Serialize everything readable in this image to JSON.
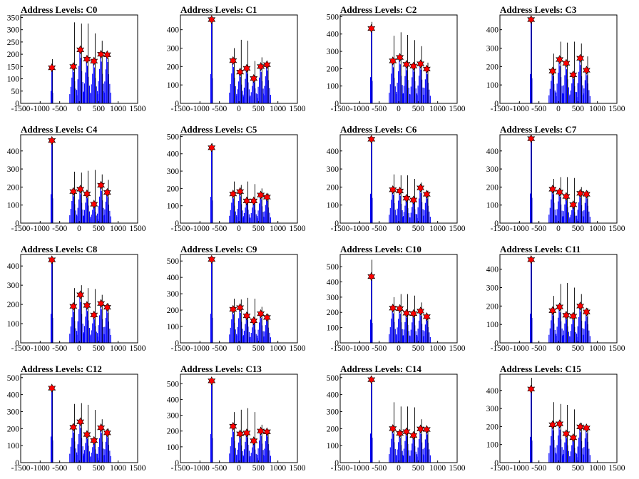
{
  "colors": {
    "hist": "#0000ff",
    "spike": "#000000",
    "marker": "#ff0000",
    "axis": "#000000"
  },
  "chart_data": [
    {
      "type": "bar",
      "title": "Address Levels: C0",
      "xlim": [
        -1500,
        1500
      ],
      "ylim": [
        0,
        360
      ],
      "xticks": [
        "-1500",
        "-1000",
        "-500",
        "0",
        "500",
        "1000",
        "1500"
      ],
      "yticks": [
        "0",
        "50",
        "100",
        "150",
        "200",
        "250",
        "300",
        "350"
      ],
      "levels": [
        {
          "x": -700,
          "value": 145,
          "peak": 180
        },
        {
          "x": -150,
          "value": 150,
          "peak": 330
        },
        {
          "x": 30,
          "value": 218,
          "peak": 325
        },
        {
          "x": 200,
          "value": 180,
          "peak": 325
        },
        {
          "x": 380,
          "value": 172,
          "peak": 285
        },
        {
          "x": 560,
          "value": 200,
          "peak": 255
        },
        {
          "x": 720,
          "value": 198,
          "peak": 185
        }
      ]
    },
    {
      "type": "bar",
      "title": "Address Levels: C1",
      "xlim": [
        -1500,
        1500
      ],
      "ylim": [
        0,
        480
      ],
      "xticks": [
        "-1500",
        "-1000",
        "-500",
        "0",
        "500",
        "1000",
        "1500"
      ],
      "yticks": [
        "0",
        "100",
        "200",
        "300",
        "400"
      ],
      "levels": [
        {
          "x": -700,
          "value": 455,
          "peak": 455
        },
        {
          "x": -150,
          "value": 232,
          "peak": 300
        },
        {
          "x": 30,
          "value": 170,
          "peak": 345
        },
        {
          "x": 200,
          "value": 190,
          "peak": 340
        },
        {
          "x": 380,
          "value": 135,
          "peak": 230
        },
        {
          "x": 560,
          "value": 200,
          "peak": 250
        },
        {
          "x": 720,
          "value": 210,
          "peak": 220
        }
      ]
    },
    {
      "type": "bar",
      "title": "Address Levels: C2",
      "xlim": [
        -1500,
        1500
      ],
      "ylim": [
        0,
        510
      ],
      "xticks": [
        "-1500",
        "-1000",
        "-500",
        "0",
        "500",
        "1000",
        "1500"
      ],
      "yticks": [
        "0",
        "100",
        "200",
        "300",
        "400",
        "500"
      ],
      "levels": [
        {
          "x": -700,
          "value": 432,
          "peak": 470
        },
        {
          "x": -150,
          "value": 245,
          "peak": 390
        },
        {
          "x": 30,
          "value": 265,
          "peak": 410
        },
        {
          "x": 200,
          "value": 225,
          "peak": 395
        },
        {
          "x": 380,
          "value": 215,
          "peak": 365
        },
        {
          "x": 560,
          "value": 228,
          "peak": 330
        },
        {
          "x": 720,
          "value": 198,
          "peak": 235
        }
      ]
    },
    {
      "type": "bar",
      "title": "Address Levels: C3",
      "xlim": [
        -1500,
        1500
      ],
      "ylim": [
        0,
        480
      ],
      "xticks": [
        "-1500",
        "-1000",
        "-500",
        "0",
        "500",
        "1000",
        "1500"
      ],
      "yticks": [
        "0",
        "100",
        "200",
        "300",
        "400"
      ],
      "levels": [
        {
          "x": -700,
          "value": 455,
          "peak": 455
        },
        {
          "x": -150,
          "value": 175,
          "peak": 270
        },
        {
          "x": 30,
          "value": 238,
          "peak": 335
        },
        {
          "x": 200,
          "value": 218,
          "peak": 330
        },
        {
          "x": 380,
          "value": 155,
          "peak": 335
        },
        {
          "x": 560,
          "value": 245,
          "peak": 325
        },
        {
          "x": 720,
          "value": 180,
          "peak": 255
        }
      ]
    },
    {
      "type": "bar",
      "title": "Address Levels: C4",
      "xlim": [
        -1500,
        1500
      ],
      "ylim": [
        0,
        490
      ],
      "xticks": [
        "-1500",
        "-1000",
        "-500",
        "0",
        "500",
        "1000",
        "1500"
      ],
      "yticks": [
        "0",
        "100",
        "200",
        "300",
        "400"
      ],
      "levels": [
        {
          "x": -700,
          "value": 458,
          "peak": 458
        },
        {
          "x": -150,
          "value": 175,
          "peak": 285
        },
        {
          "x": 30,
          "value": 188,
          "peak": 280
        },
        {
          "x": 200,
          "value": 162,
          "peak": 290
        },
        {
          "x": 380,
          "value": 105,
          "peak": 295
        },
        {
          "x": 560,
          "value": 210,
          "peak": 270
        },
        {
          "x": 720,
          "value": 170,
          "peak": 240
        }
      ]
    },
    {
      "type": "bar",
      "title": "Address Levels: C5",
      "xlim": [
        -1500,
        1500
      ],
      "ylim": [
        0,
        510
      ],
      "xticks": [
        "-1500",
        "-1000",
        "-500",
        "0",
        "500",
        "1000",
        "1500"
      ],
      "yticks": [
        "0",
        "100",
        "200",
        "300",
        "400",
        "500"
      ],
      "levels": [
        {
          "x": -700,
          "value": 435,
          "peak": 460
        },
        {
          "x": -150,
          "value": 168,
          "peak": 240
        },
        {
          "x": 30,
          "value": 182,
          "peak": 220
        },
        {
          "x": 200,
          "value": 128,
          "peak": 240
        },
        {
          "x": 380,
          "value": 128,
          "peak": 225
        },
        {
          "x": 560,
          "value": 162,
          "peak": 200
        },
        {
          "x": 720,
          "value": 150,
          "peak": 170
        }
      ]
    },
    {
      "type": "bar",
      "title": "Address Levels: C6",
      "xlim": [
        -1500,
        1500
      ],
      "ylim": [
        0,
        490
      ],
      "xticks": [
        "-1500",
        "-1000",
        "-500",
        "0",
        "500",
        "1000",
        "1500"
      ],
      "yticks": [
        "0",
        "100",
        "200",
        "300",
        "400"
      ],
      "levels": [
        {
          "x": -700,
          "value": 465,
          "peak": 465
        },
        {
          "x": -150,
          "value": 185,
          "peak": 270
        },
        {
          "x": 30,
          "value": 178,
          "peak": 265
        },
        {
          "x": 200,
          "value": 138,
          "peak": 265
        },
        {
          "x": 380,
          "value": 128,
          "peak": 245
        },
        {
          "x": 560,
          "value": 195,
          "peak": 225
        },
        {
          "x": 720,
          "value": 160,
          "peak": 180
        }
      ]
    },
    {
      "type": "bar",
      "title": "Address Levels: C7",
      "xlim": [
        -1500,
        1500
      ],
      "ylim": [
        0,
        490
      ],
      "xticks": [
        "-1500",
        "-1000",
        "-500",
        "0",
        "500",
        "1000",
        "1500"
      ],
      "yticks": [
        "0",
        "100",
        "200",
        "300",
        "400"
      ],
      "levels": [
        {
          "x": -700,
          "value": 468,
          "peak": 468
        },
        {
          "x": -150,
          "value": 188,
          "peak": 245
        },
        {
          "x": 30,
          "value": 172,
          "peak": 255
        },
        {
          "x": 200,
          "value": 148,
          "peak": 255
        },
        {
          "x": 380,
          "value": 102,
          "peak": 250
        },
        {
          "x": 560,
          "value": 165,
          "peak": 200
        },
        {
          "x": 720,
          "value": 160,
          "peak": 180
        }
      ]
    },
    {
      "type": "bar",
      "title": "Address Levels: C8",
      "xlim": [
        -1500,
        1500
      ],
      "ylim": [
        0,
        460
      ],
      "xticks": [
        "-1500",
        "-1000",
        "-500",
        "0",
        "500",
        "1000",
        "1500"
      ],
      "yticks": [
        "0",
        "100",
        "200",
        "300",
        "400"
      ],
      "levels": [
        {
          "x": -700,
          "value": 432,
          "peak": 432
        },
        {
          "x": -150,
          "value": 190,
          "peak": 285
        },
        {
          "x": 30,
          "value": 250,
          "peak": 300
        },
        {
          "x": 200,
          "value": 195,
          "peak": 285
        },
        {
          "x": 380,
          "value": 145,
          "peak": 280
        },
        {
          "x": 560,
          "value": 205,
          "peak": 250
        },
        {
          "x": 720,
          "value": 185,
          "peak": 205
        }
      ]
    },
    {
      "type": "bar",
      "title": "Address Levels: C9",
      "xlim": [
        -1500,
        1500
      ],
      "ylim": [
        0,
        540
      ],
      "xticks": [
        "-1500",
        "-1000",
        "-500",
        "0",
        "500",
        "1000",
        "1500"
      ],
      "yticks": [
        "0",
        "100",
        "200",
        "300",
        "400",
        "500"
      ],
      "levels": [
        {
          "x": -700,
          "value": 510,
          "peak": 510
        },
        {
          "x": -150,
          "value": 205,
          "peak": 270
        },
        {
          "x": 30,
          "value": 215,
          "peak": 265
        },
        {
          "x": 200,
          "value": 165,
          "peak": 275
        },
        {
          "x": 380,
          "value": 135,
          "peak": 270
        },
        {
          "x": 560,
          "value": 178,
          "peak": 220
        },
        {
          "x": 720,
          "value": 155,
          "peak": 175
        }
      ]
    },
    {
      "type": "bar",
      "title": "Address Levels: C10",
      "xlim": [
        -1500,
        1500
      ],
      "ylim": [
        0,
        580
      ],
      "xticks": [
        "-1500",
        "-1000",
        "-500",
        "0",
        "500",
        "1000",
        "1500"
      ],
      "yticks": [
        "0",
        "100",
        "200",
        "300",
        "400",
        "500"
      ],
      "levels": [
        {
          "x": -700,
          "value": 435,
          "peak": 545
        },
        {
          "x": -150,
          "value": 228,
          "peak": 300
        },
        {
          "x": 30,
          "value": 225,
          "peak": 320
        },
        {
          "x": 200,
          "value": 195,
          "peak": 320
        },
        {
          "x": 380,
          "value": 192,
          "peak": 310
        },
        {
          "x": 560,
          "value": 208,
          "peak": 265
        },
        {
          "x": 720,
          "value": 172,
          "peak": 185
        }
      ]
    },
    {
      "type": "bar",
      "title": "Address Levels: C11",
      "xlim": [
        -1500,
        1500
      ],
      "ylim": [
        0,
        480
      ],
      "xticks": [
        "-1500",
        "-1000",
        "-500",
        "0",
        "500",
        "1000",
        "1500"
      ],
      "yticks": [
        "0",
        "100",
        "200",
        "300",
        "400"
      ],
      "levels": [
        {
          "x": -700,
          "value": 452,
          "peak": 452
        },
        {
          "x": -150,
          "value": 175,
          "peak": 255
        },
        {
          "x": 30,
          "value": 195,
          "peak": 320
        },
        {
          "x": 200,
          "value": 150,
          "peak": 325
        },
        {
          "x": 380,
          "value": 145,
          "peak": 300
        },
        {
          "x": 560,
          "value": 200,
          "peak": 265
        },
        {
          "x": 720,
          "value": 168,
          "peak": 190
        }
      ]
    },
    {
      "type": "bar",
      "title": "Address Levels: C12",
      "xlim": [
        -1500,
        1500
      ],
      "ylim": [
        0,
        520
      ],
      "xticks": [
        "-1500",
        "-1000",
        "-500",
        "0",
        "500",
        "1000",
        "1500"
      ],
      "yticks": [
        "0",
        "100",
        "200",
        "300",
        "400",
        "500"
      ],
      "levels": [
        {
          "x": -700,
          "value": 438,
          "peak": 438
        },
        {
          "x": -150,
          "value": 208,
          "peak": 345
        },
        {
          "x": 30,
          "value": 240,
          "peak": 350
        },
        {
          "x": 200,
          "value": 165,
          "peak": 340
        },
        {
          "x": 380,
          "value": 130,
          "peak": 310
        },
        {
          "x": 560,
          "value": 205,
          "peak": 255
        },
        {
          "x": 720,
          "value": 175,
          "peak": 200
        }
      ]
    },
    {
      "type": "bar",
      "title": "Address Levels: C13",
      "xlim": [
        -1500,
        1500
      ],
      "ylim": [
        0,
        560
      ],
      "xticks": [
        "-1500",
        "-1000",
        "-500",
        "0",
        "500",
        "1000",
        "1500"
      ],
      "yticks": [
        "0",
        "100",
        "200",
        "300",
        "400",
        "500"
      ],
      "levels": [
        {
          "x": -700,
          "value": 518,
          "peak": 518
        },
        {
          "x": -150,
          "value": 230,
          "peak": 320
        },
        {
          "x": 30,
          "value": 182,
          "peak": 335
        },
        {
          "x": 200,
          "value": 188,
          "peak": 345
        },
        {
          "x": 380,
          "value": 138,
          "peak": 320
        },
        {
          "x": 560,
          "value": 200,
          "peak": 240
        },
        {
          "x": 720,
          "value": 195,
          "peak": 210
        }
      ]
    },
    {
      "type": "bar",
      "title": "Address Levels: C14",
      "xlim": [
        -1500,
        1500
      ],
      "ylim": [
        0,
        520
      ],
      "xticks": [
        "-1500",
        "-1000",
        "-500",
        "0",
        "500",
        "1000",
        "1500"
      ],
      "yticks": [
        "0",
        "100",
        "200",
        "300",
        "400",
        "500"
      ],
      "levels": [
        {
          "x": -700,
          "value": 488,
          "peak": 488
        },
        {
          "x": -150,
          "value": 200,
          "peak": 355
        },
        {
          "x": 30,
          "value": 172,
          "peak": 330
        },
        {
          "x": 200,
          "value": 182,
          "peak": 330
        },
        {
          "x": 380,
          "value": 160,
          "peak": 325
        },
        {
          "x": 560,
          "value": 198,
          "peak": 255
        },
        {
          "x": 720,
          "value": 195,
          "peak": 205
        }
      ]
    },
    {
      "type": "bar",
      "title": "Address Levels: C15",
      "xlim": [
        -1500,
        1500
      ],
      "ylim": [
        0,
        490
      ],
      "xticks": [
        "-1500",
        "-1000",
        "-500",
        "0",
        "500",
        "1000",
        "1500"
      ],
      "yticks": [
        "0",
        "100",
        "200",
        "300",
        "400"
      ],
      "levels": [
        {
          "x": -700,
          "value": 408,
          "peak": 470
        },
        {
          "x": -150,
          "value": 210,
          "peak": 335
        },
        {
          "x": 30,
          "value": 215,
          "peak": 325
        },
        {
          "x": 200,
          "value": 160,
          "peak": 320
        },
        {
          "x": 380,
          "value": 138,
          "peak": 295
        },
        {
          "x": 560,
          "value": 198,
          "peak": 220
        },
        {
          "x": 720,
          "value": 192,
          "peak": 200
        }
      ]
    }
  ]
}
